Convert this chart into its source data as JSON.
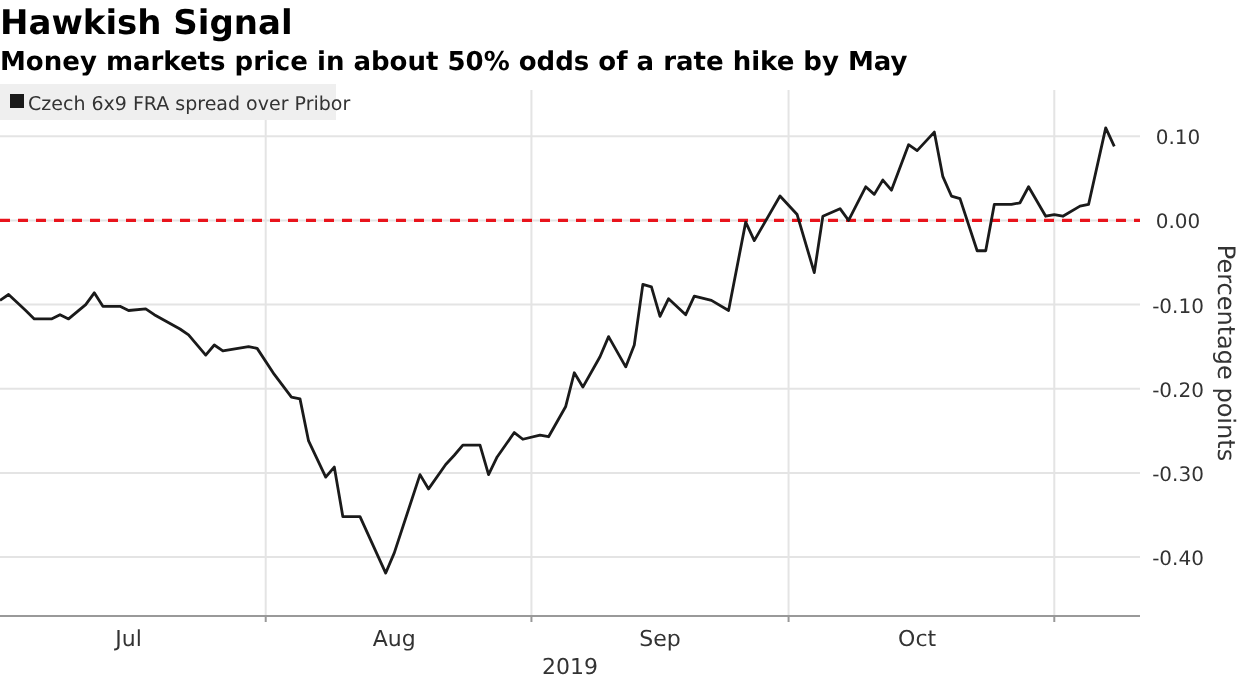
{
  "chart_data": {
    "type": "line",
    "title": "Hawkish Signal",
    "subtitle": "Money markets price in about 50% odds of a rate hike by May",
    "ylabel": "Percentage points",
    "xlabel": "2019",
    "x": [
      "2019-07-01",
      "2019-07-02",
      "2019-07-04",
      "2019-07-05",
      "2019-07-07",
      "2019-07-08",
      "2019-07-09",
      "2019-07-11",
      "2019-07-12",
      "2019-07-13",
      "2019-07-15",
      "2019-07-16",
      "2019-07-18",
      "2019-07-19",
      "2019-07-22",
      "2019-07-23",
      "2019-07-25",
      "2019-07-26",
      "2019-07-27",
      "2019-07-30",
      "2019-07-31",
      "2019-08-02",
      "2019-08-04",
      "2019-08-05",
      "2019-08-06",
      "2019-08-08",
      "2019-08-09",
      "2019-08-10",
      "2019-08-12",
      "2019-08-15",
      "2019-08-16",
      "2019-08-19",
      "2019-08-20",
      "2019-08-22",
      "2019-08-23",
      "2019-08-24",
      "2019-08-26",
      "2019-08-27",
      "2019-08-28",
      "2019-08-30",
      "2019-08-31",
      "2019-09-02",
      "2019-09-03",
      "2019-09-05",
      "2019-09-06",
      "2019-09-07",
      "2019-09-09",
      "2019-09-10",
      "2019-09-12",
      "2019-09-13",
      "2019-09-14",
      "2019-09-15",
      "2019-09-16",
      "2019-09-17",
      "2019-09-19",
      "2019-09-20",
      "2019-09-22",
      "2019-09-24",
      "2019-09-26",
      "2019-09-27",
      "2019-09-30",
      "2019-10-02",
      "2019-10-04",
      "2019-10-05",
      "2019-10-07",
      "2019-10-08",
      "2019-10-10",
      "2019-10-11",
      "2019-10-12",
      "2019-10-13",
      "2019-10-15",
      "2019-10-16",
      "2019-10-18",
      "2019-10-19",
      "2019-10-20",
      "2019-10-21",
      "2019-10-23",
      "2019-10-24",
      "2019-10-25",
      "2019-10-27",
      "2019-10-28",
      "2019-10-29",
      "2019-10-31",
      "2019-11-01",
      "2019-11-02",
      "2019-11-04",
      "2019-11-05",
      "2019-11-07",
      "2019-11-08"
    ],
    "series": [
      {
        "name": "Czech 6x9 FRA spread over Pribor",
        "color": "#1a1a1a",
        "values": [
          -0.095,
          -0.088,
          -0.107,
          -0.117,
          -0.117,
          -0.112,
          -0.117,
          -0.1,
          -0.086,
          -0.102,
          -0.102,
          -0.107,
          -0.105,
          -0.112,
          -0.129,
          -0.136,
          -0.16,
          -0.148,
          -0.155,
          -0.15,
          -0.152,
          -0.183,
          -0.21,
          -0.212,
          -0.262,
          -0.305,
          -0.293,
          -0.352,
          -0.352,
          -0.419,
          -0.395,
          -0.302,
          -0.319,
          -0.29,
          -0.279,
          -0.267,
          -0.267,
          -0.302,
          -0.281,
          -0.252,
          -0.26,
          -0.255,
          -0.257,
          -0.221,
          -0.181,
          -0.198,
          -0.162,
          -0.138,
          -0.174,
          -0.148,
          -0.076,
          -0.079,
          -0.114,
          -0.093,
          -0.112,
          -0.09,
          -0.095,
          -0.107,
          -0.002,
          -0.024,
          0.029,
          0.007,
          -0.062,
          0.005,
          0.014,
          0,
          0.04,
          0.031,
          0.048,
          0.036,
          0.09,
          0.083,
          0.105,
          0.052,
          0.029,
          0.026,
          -0.036,
          -0.036,
          0.019,
          0.019,
          0.021,
          0.04,
          0.005,
          0.007,
          0.005,
          0.017,
          0.019,
          0.11,
          0.088
        ]
      }
    ],
    "xlim": [
      "2019-07-01",
      "2019-11-11"
    ],
    "xticks": [
      {
        "value": "2019-07-16",
        "label": "Jul"
      },
      {
        "value": "2019-08-01",
        "label": null
      },
      {
        "value": "2019-08-16",
        "label": "Aug"
      },
      {
        "value": "2019-09-01",
        "label": null
      },
      {
        "value": "2019-09-16",
        "label": "Sep"
      },
      {
        "value": "2019-10-01",
        "label": null
      },
      {
        "value": "2019-10-16",
        "label": "Oct"
      },
      {
        "value": "2019-11-01",
        "label": null
      }
    ],
    "ylim": [
      -0.47,
      0.155
    ],
    "yticks": [
      {
        "value": 0.1,
        "label": "0.10"
      },
      {
        "value": 0,
        "label": "0.00"
      },
      {
        "value": -0.1,
        "label": "-0.10"
      },
      {
        "value": -0.2,
        "label": "-0.20"
      },
      {
        "value": -0.3,
        "label": "-0.30"
      },
      {
        "value": -0.4,
        "label": "-0.40"
      }
    ],
    "ref_lines": [
      {
        "axis": "y",
        "value": 0,
        "color": "#e8141c",
        "line_style": "dashed"
      }
    ],
    "grid": true,
    "legend": "top left",
    "marker": "none",
    "line_style": "solid"
  }
}
